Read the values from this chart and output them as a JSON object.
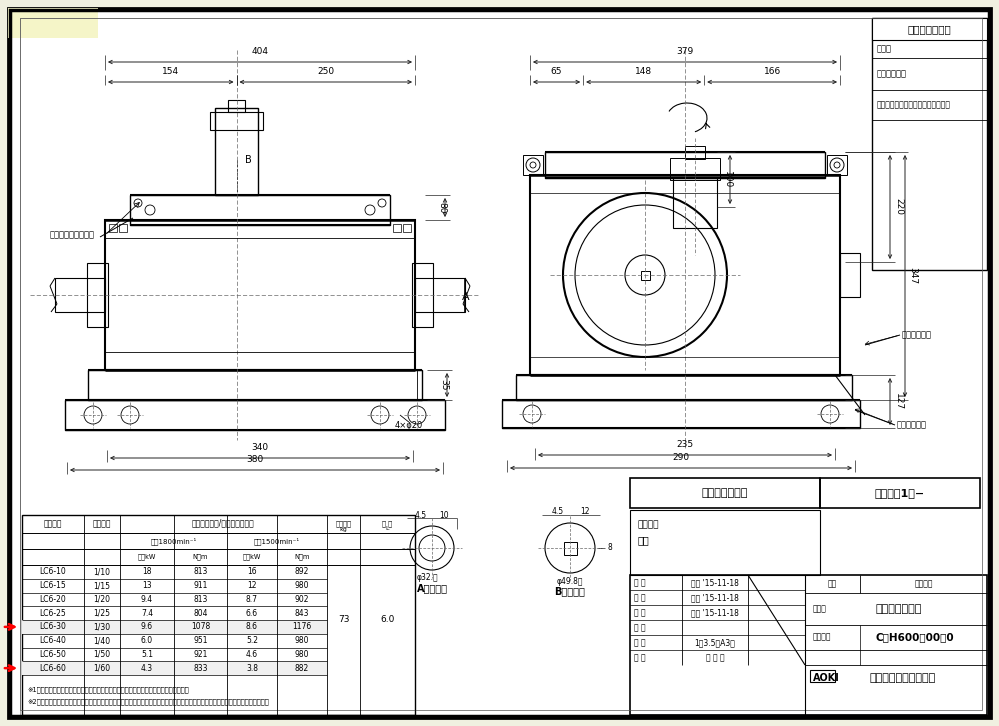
{
  "bg_color": "#f0f0e0",
  "paper_color": "#ffffff",
  "border_color": "#000000",
  "table_rows": [
    [
      "LC6-10",
      "1/10",
      "18",
      "813",
      "16",
      "892"
    ],
    [
      "LC6-15",
      "1/15",
      "13",
      "911",
      "12",
      "980"
    ],
    [
      "LC6-20",
      "1/20",
      "9.4",
      "813",
      "8.7",
      "902"
    ],
    [
      "LC6-25",
      "1/25",
      "7.4",
      "804",
      "6.6",
      "843"
    ],
    [
      "LC6-30",
      "1/30",
      "9.6",
      "1078",
      "8.6",
      "1176"
    ],
    [
      "LC6-40",
      "1/40",
      "6.0",
      "951",
      "5.2",
      "980"
    ],
    [
      "LC6-50",
      "1/50",
      "5.1",
      "921",
      "4.6",
      "980"
    ],
    [
      "LC6-60",
      "1/60",
      "4.3",
      "833",
      "3.8",
      "882"
    ]
  ],
  "highlighted_rows": [
    4,
    7
  ],
  "weight": "73",
  "oil": "6.0",
  "note1": "※1．上記回転数以外の能力，その他詳細仕様については，カタログをご参照ください．",
  "note2": "※2．図中の回転矢印は，入力軸を右回転させた場合の出力軸回転方向を示すものであり，運転方向を限定するものではありません．",
  "axis_config": "軸配置：標　準",
  "reduction_ratio": "減速比、1／−",
  "confirmation_title": "ご確認願います",
  "confirmation_label": "ご確認",
  "date_label": "ご確認年月日",
  "company_sales": "青木精密工業（株）　営業グループ",
  "title_rows": [
    [
      "承 認",
      "高橋 '15-11-18"
    ],
    [
      "検 図",
      "佐藤 '15-11-18"
    ],
    [
      "製 図",
      "高橋 '15-11-18"
    ],
    [
      "設 計",
      ""
    ],
    [
      "尺 度",
      "1：3.5（A3）"
    ],
    [
      "図 面",
      "三 角 法"
    ]
  ],
  "hinmei": "ウォーム減速機",
  "zumen_num": "C－H600－00－0",
  "company_name": "青木精密工業株式会社",
  "special_items": "特殊項目",
  "air_vent": "エア抜き（注油口）",
  "oil_gauge": "オイルゲージ",
  "drain_plug": "ドレンプラグ"
}
